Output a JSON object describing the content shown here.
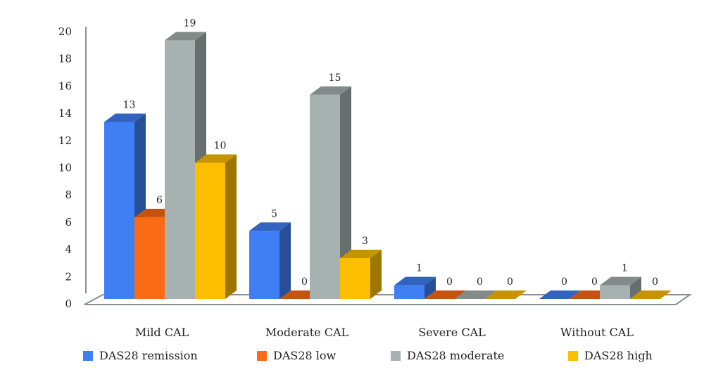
{
  "chart_data": {
    "type": "bar",
    "categories": [
      "Mild CAL",
      "Moderate CAL",
      "Severe CAL",
      "Without CAL"
    ],
    "series": [
      {
        "name": "DAS28 remission",
        "values": [
          13,
          5,
          1,
          0
        ],
        "color": "#3f7ff5"
      },
      {
        "name": "DAS28 low",
        "values": [
          6,
          0,
          0,
          0
        ],
        "color": "#fb6a14"
      },
      {
        "name": "DAS28 moderate",
        "values": [
          19,
          15,
          0,
          1
        ],
        "color": "#a7b1b1"
      },
      {
        "name": "DAS28 high",
        "values": [
          10,
          3,
          0,
          0
        ],
        "color": "#fdbe00"
      }
    ],
    "ylim": [
      0,
      20
    ],
    "yticks": [
      0,
      2,
      4,
      6,
      8,
      10,
      12,
      14,
      16,
      18,
      20
    ],
    "legend_position": "bottom",
    "style": "3d"
  }
}
